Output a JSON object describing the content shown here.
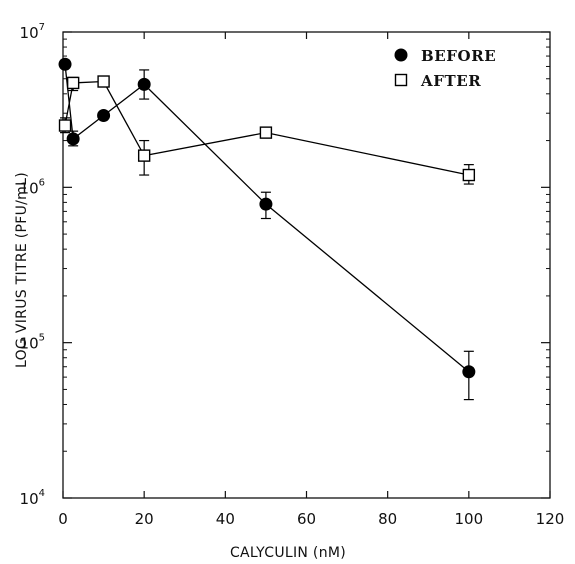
{
  "chart_data": {
    "type": "line",
    "title": "",
    "xlabel": "CALYCULIN (nM)",
    "ylabel": "LOG VIRUS TITRE (PFU/mL)",
    "xlim": [
      0,
      120
    ],
    "ylim": [
      10000,
      10000000
    ],
    "yscale": "log",
    "grid": false,
    "legend_position": "top-right",
    "x_ticks": [
      "0",
      "20",
      "40",
      "60",
      "80",
      "100",
      "120"
    ],
    "y_ticks": [
      {
        "base": "10",
        "exp": "4"
      },
      {
        "base": "10",
        "exp": "5"
      },
      {
        "base": "10",
        "exp": "6"
      },
      {
        "base": "10",
        "exp": "7"
      }
    ],
    "series": [
      {
        "name": "BEFORE",
        "marker": "filled-circle",
        "color": "#000000",
        "x": [
          0.5,
          2.5,
          10,
          20,
          50,
          100
        ],
        "y": [
          6200000,
          2050000,
          2900000,
          4600000,
          780000,
          65000
        ],
        "err_low": [
          null,
          1850000,
          null,
          3700000,
          630000,
          43000
        ],
        "err_high": [
          null,
          2300000,
          null,
          5700000,
          930000,
          88000
        ]
      },
      {
        "name": "AFTER",
        "marker": "open-square",
        "color": "#000000",
        "x": [
          0.5,
          2.5,
          10,
          20,
          50,
          100
        ],
        "y": [
          2500000,
          4700000,
          4800000,
          1600000,
          2250000,
          1200000
        ],
        "err_low": [
          2250000,
          4200000,
          null,
          1200000,
          null,
          1050000
        ],
        "err_high": [
          2800000,
          5100000,
          null,
          2000000,
          null,
          1400000
        ]
      }
    ]
  }
}
